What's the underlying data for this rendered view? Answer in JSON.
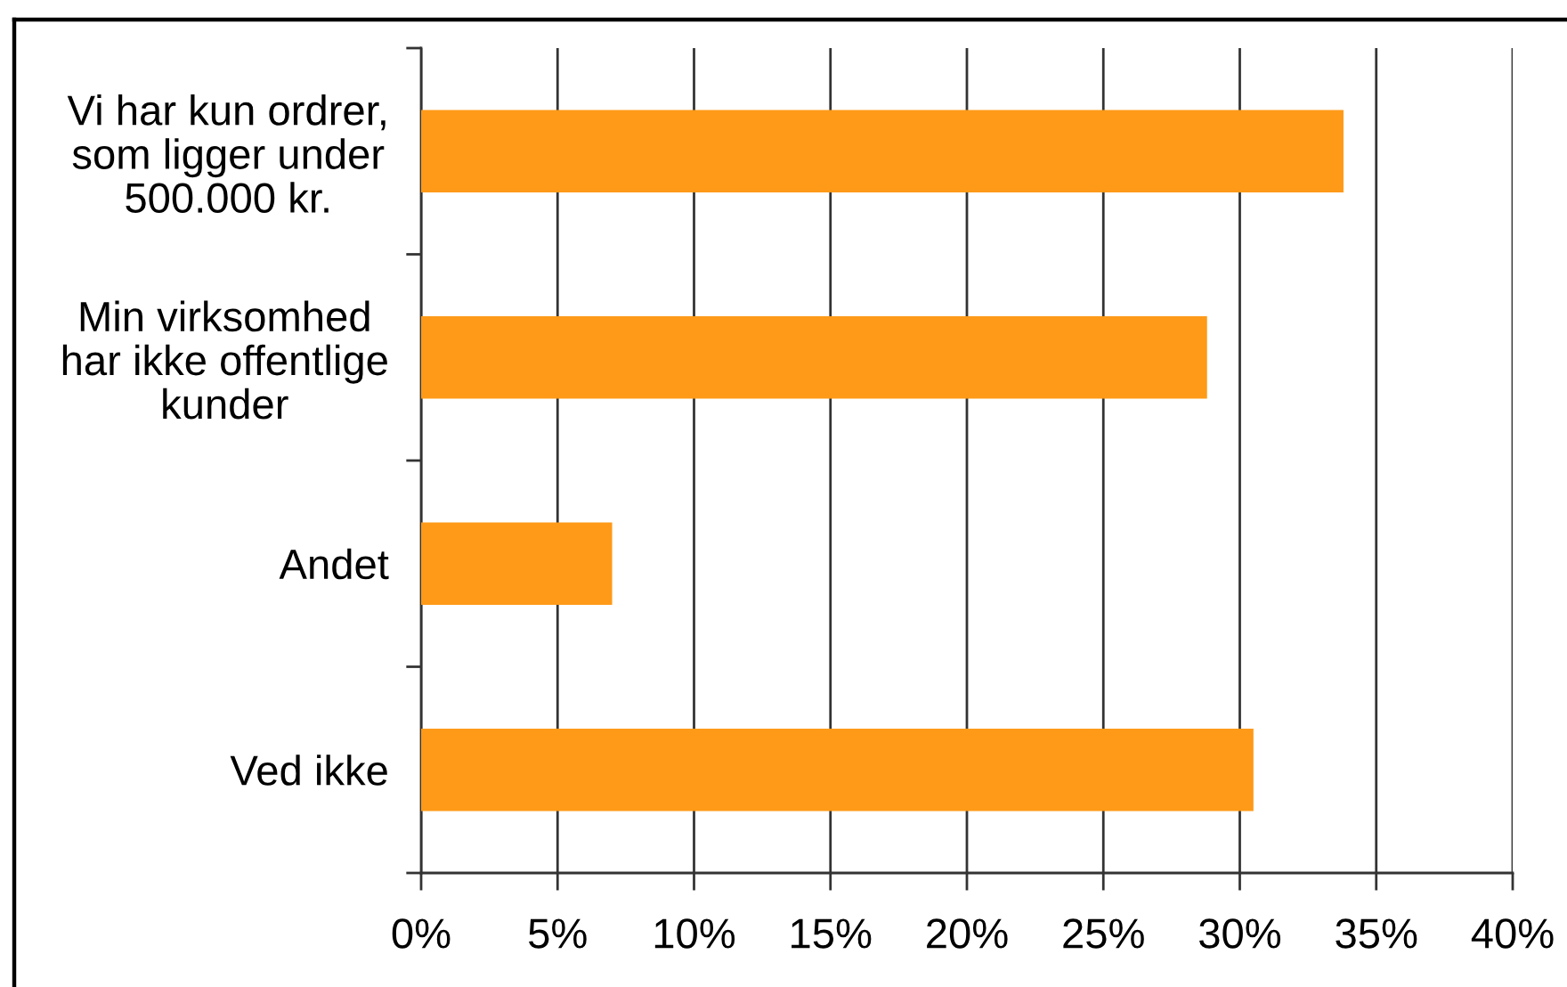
{
  "chart_data": {
    "type": "bar",
    "orientation": "horizontal",
    "categories": [
      "Vi har kun ordrer,\nsom ligger under\n500.000 kr.",
      "Min virksomhed\nhar ikke offentlige\nkunder",
      "Andet",
      "Ved ikke"
    ],
    "values": [
      33.8,
      28.8,
      7.0,
      30.5
    ],
    "color": "#fe9a18",
    "xlim": [
      0,
      40
    ],
    "xticks": [
      {
        "value": 0,
        "label": "0%"
      },
      {
        "value": 5,
        "label": "5%"
      },
      {
        "value": 10,
        "label": "10%"
      },
      {
        "value": 15,
        "label": "15%"
      },
      {
        "value": 20,
        "label": "20%"
      },
      {
        "value": 25,
        "label": "25%"
      },
      {
        "value": 30,
        "label": "30%"
      },
      {
        "value": 35,
        "label": "35%"
      },
      {
        "value": 40,
        "label": "40%"
      }
    ],
    "grid": "x"
  }
}
